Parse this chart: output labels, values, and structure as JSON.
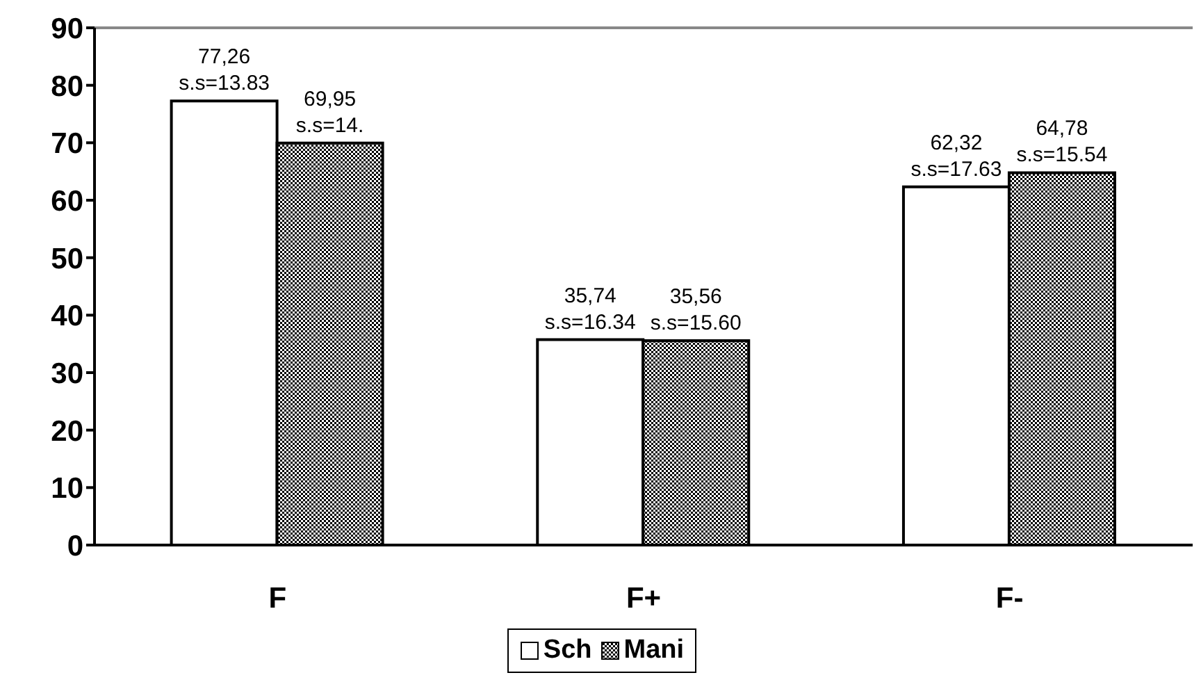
{
  "chart_data": {
    "type": "bar",
    "categories": [
      "F",
      "F+",
      "F-"
    ],
    "series": [
      {
        "name": "Sch",
        "color": "#ffffff",
        "values": [
          77.26,
          35.74,
          62.32
        ],
        "value_labels": [
          "77,26\ns.s=13.83",
          "35,74\ns.s=16.34",
          "62,32\ns.s=17.63"
        ]
      },
      {
        "name": "Mani",
        "color": "#000000",
        "values": [
          69.95,
          35.56,
          64.78
        ],
        "value_labels": [
          "69,95\ns.s=14.",
          "35,56\ns.s=15.60",
          "64,78\ns.s=15.54"
        ]
      }
    ],
    "ylim": [
      0,
      90
    ],
    "yticks": [
      0,
      10,
      20,
      30,
      40,
      50,
      60,
      70,
      80,
      90
    ],
    "legend": "bottom"
  }
}
